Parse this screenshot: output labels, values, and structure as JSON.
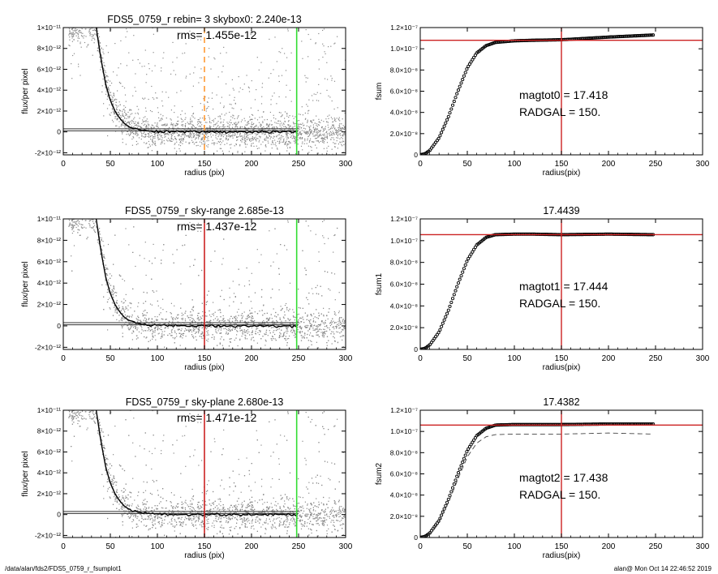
{
  "footer": {
    "path": "/data/alan/fds2/FDS5_0759_r_fsumplot1",
    "user_time": "alan@  Mon Oct 14 22:46:52 2019"
  },
  "colors": {
    "orange": "#ff9933",
    "green": "#33dd33",
    "red": "#cc2222",
    "gray": "#999999",
    "black": "#000000"
  },
  "chart_data": [
    {
      "type": "scatter",
      "title": "FDS5_0759_r rebin= 3    skybox0:  2.240e-13",
      "annotation": "rms= 1.455e-12",
      "xlabel": "radius (pix)",
      "ylabel": "flux/per pixel",
      "xlim": [
        0,
        300
      ],
      "ylim": [
        -2.2e-12,
        1e-11
      ],
      "xticks": [
        "0",
        "50",
        "100",
        "150",
        "200",
        "250",
        "300"
      ],
      "yticks": [
        "1×10⁻¹¹",
        "8×10⁻¹²",
        "6×10⁻¹²",
        "4×10⁻¹²",
        "2×10⁻¹²",
        "0",
        "-2×10⁻¹²"
      ],
      "ytick_values": [
        1e-11,
        8e-12,
        6e-12,
        4e-12,
        2e-12,
        0,
        -2e-12
      ],
      "profile": {
        "x": [
          35,
          40,
          45,
          50,
          55,
          60,
          65,
          70,
          80,
          90,
          100,
          120,
          150,
          200,
          250
        ],
        "y": [
          1e-11,
          7e-12,
          4.6e-12,
          3e-12,
          2e-12,
          1.3e-12,
          8e-13,
          5e-13,
          2e-13,
          1e-13,
          5e-14,
          1e-14,
          0,
          0,
          0
        ]
      },
      "sky_lines": [
        3e-13,
        1e-13
      ],
      "vlines": [
        {
          "x": 150,
          "color": "#ff9933",
          "style": "dashed"
        },
        {
          "x": 248,
          "color": "#33dd33",
          "style": "solid"
        }
      ]
    },
    {
      "type": "line",
      "title": "",
      "xlabel": "radius(pix)",
      "ylabel": "fsum",
      "xlim": [
        0,
        300
      ],
      "ylim": [
        0,
        1.2e-07
      ],
      "xticks": [
        "0",
        "50",
        "100",
        "150",
        "200",
        "250",
        "300"
      ],
      "yticks": [
        "1.2×10⁻⁷",
        "1.0×10⁻⁷",
        "8.0×10⁻⁸",
        "6.0×10⁻⁸",
        "4.0×10⁻⁸",
        "2.0×10⁻⁸",
        "0"
      ],
      "ytick_values": [
        1.2e-07,
        1e-07,
        8e-08,
        6e-08,
        4e-08,
        2e-08,
        0
      ],
      "curve": {
        "x": [
          0,
          5,
          10,
          20,
          30,
          40,
          50,
          60,
          70,
          80,
          100,
          120,
          150,
          200,
          248
        ],
        "y": [
          0,
          1e-09,
          4e-09,
          1.6e-08,
          3.6e-08,
          6e-08,
          8.2e-08,
          9.6e-08,
          1.03e-07,
          1.06e-07,
          1.075e-07,
          1.08e-07,
          1.085e-07,
          1.11e-07,
          1.13e-07
        ]
      },
      "hline": 1.08e-07,
      "vline": 150,
      "annotations": [
        "magtot0 =  17.418",
        "RADGAL =    150."
      ]
    },
    {
      "type": "scatter",
      "title": "FDS5_0759_r sky-range  2.685e-13",
      "annotation": "rms= 1.437e-12",
      "xlabel": "radius (pix)",
      "ylabel": "flux/per pixel",
      "xlim": [
        0,
        300
      ],
      "ylim": [
        -2.2e-12,
        1e-11
      ],
      "xticks": [
        "0",
        "50",
        "100",
        "150",
        "200",
        "250",
        "300"
      ],
      "yticks": [
        "1×10⁻¹¹",
        "8×10⁻¹²",
        "6×10⁻¹²",
        "4×10⁻¹²",
        "2×10⁻¹²",
        "0",
        "-2×10⁻¹²"
      ],
      "ytick_values": [
        1e-11,
        8e-12,
        6e-12,
        4e-12,
        2e-12,
        0,
        -2e-12
      ],
      "profile": {
        "x": [
          35,
          40,
          45,
          50,
          55,
          60,
          65,
          70,
          80,
          90,
          100,
          120,
          150,
          200,
          250
        ],
        "y": [
          1e-11,
          7e-12,
          4.6e-12,
          3e-12,
          2e-12,
          1.3e-12,
          8e-13,
          5e-13,
          2e-13,
          1e-13,
          5e-14,
          1e-14,
          0,
          0,
          0
        ]
      },
      "sky_lines": [
        3e-13,
        1e-13
      ],
      "vlines": [
        {
          "x": 150,
          "color": "#cc2222",
          "style": "solid"
        },
        {
          "x": 248,
          "color": "#33dd33",
          "style": "solid"
        }
      ]
    },
    {
      "type": "line",
      "title": "17.4439",
      "xlabel": "radius(pix)",
      "ylabel": "fsum1",
      "xlim": [
        0,
        300
      ],
      "ylim": [
        0,
        1.2e-07
      ],
      "xticks": [
        "0",
        "50",
        "100",
        "150",
        "200",
        "250",
        "300"
      ],
      "yticks": [
        "1.2×10⁻⁷",
        "1.0×10⁻⁷",
        "8.0×10⁻⁸",
        "6.0×10⁻⁸",
        "4.0×10⁻⁸",
        "2.0×10⁻⁸",
        "0"
      ],
      "ytick_values": [
        1.2e-07,
        1e-07,
        8e-08,
        6e-08,
        4e-08,
        2e-08,
        0
      ],
      "curve": {
        "x": [
          0,
          5,
          10,
          20,
          30,
          40,
          50,
          60,
          70,
          80,
          100,
          120,
          150,
          200,
          248
        ],
        "y": [
          0,
          1e-09,
          4e-09,
          1.6e-08,
          3.6e-08,
          6e-08,
          8.2e-08,
          9.6e-08,
          1.03e-07,
          1.055e-07,
          1.06e-07,
          1.06e-07,
          1.055e-07,
          1.06e-07,
          1.055e-07
        ]
      },
      "hline": 1.055e-07,
      "vline": 150,
      "annotations": [
        "magtot1 =  17.444",
        "RADGAL =    150."
      ]
    },
    {
      "type": "scatter",
      "title": "FDS5_0759_r sky-plane  2.680e-13",
      "annotation": "rms= 1.471e-12",
      "xlabel": "radius (pix)",
      "ylabel": "flux/per pixel",
      "xlim": [
        0,
        300
      ],
      "ylim": [
        -2.2e-12,
        1e-11
      ],
      "xticks": [
        "0",
        "50",
        "100",
        "150",
        "200",
        "250",
        "300"
      ],
      "yticks": [
        "1×10⁻¹¹",
        "8×10⁻¹²",
        "6×10⁻¹²",
        "4×10⁻¹²",
        "2×10⁻¹²",
        "0",
        "-2×10⁻¹²"
      ],
      "ytick_values": [
        1e-11,
        8e-12,
        6e-12,
        4e-12,
        2e-12,
        0,
        -2e-12
      ],
      "profile": {
        "x": [
          35,
          40,
          45,
          50,
          55,
          60,
          65,
          70,
          80,
          90,
          100,
          120,
          150,
          200,
          250
        ],
        "y": [
          1e-11,
          7e-12,
          4.6e-12,
          3e-12,
          2e-12,
          1.3e-12,
          8e-13,
          5e-13,
          2e-13,
          1e-13,
          5e-14,
          1e-14,
          0,
          0,
          0
        ]
      },
      "sky_lines": [
        3e-13,
        1e-13
      ],
      "vlines": [
        {
          "x": 150,
          "color": "#cc2222",
          "style": "solid"
        },
        {
          "x": 248,
          "color": "#33dd33",
          "style": "solid"
        }
      ]
    },
    {
      "type": "line",
      "title": "17.4382",
      "xlabel": "radius(pix)",
      "ylabel": "fsum2",
      "xlim": [
        0,
        300
      ],
      "ylim": [
        0,
        1.2e-07
      ],
      "xticks": [
        "0",
        "50",
        "100",
        "150",
        "200",
        "250",
        "300"
      ],
      "yticks": [
        "1.2×10⁻⁷",
        "1.0×10⁻⁷",
        "8.0×10⁻⁸",
        "6.0×10⁻⁸",
        "4.0×10⁻⁸",
        "2.0×10⁻⁸",
        "0"
      ],
      "ytick_values": [
        1.2e-07,
        1e-07,
        8e-08,
        6e-08,
        4e-08,
        2e-08,
        0
      ],
      "curve": {
        "x": [
          0,
          5,
          10,
          20,
          30,
          40,
          50,
          60,
          70,
          80,
          100,
          120,
          150,
          200,
          248
        ],
        "y": [
          0,
          1e-09,
          4e-09,
          1.6e-08,
          3.6e-08,
          6e-08,
          8.2e-08,
          9.6e-08,
          1.03e-07,
          1.06e-07,
          1.065e-07,
          1.065e-07,
          1.065e-07,
          1.07e-07,
          1.07e-07
        ]
      },
      "dashed_curve": {
        "x": [
          0,
          5,
          10,
          20,
          30,
          40,
          50,
          60,
          70,
          80,
          100,
          120,
          150,
          200,
          248
        ],
        "y": [
          0,
          1e-09,
          4e-09,
          1.5e-08,
          3.3e-08,
          5.5e-08,
          7.6e-08,
          8.9e-08,
          9.5e-08,
          9.7e-08,
          9.75e-08,
          9.75e-08,
          9.75e-08,
          9.85e-08,
          9.75e-08
        ]
      },
      "hline": 1.06e-07,
      "vline": 150,
      "annotations": [
        "magtot2 =  17.438",
        "RADGAL =    150."
      ]
    }
  ]
}
